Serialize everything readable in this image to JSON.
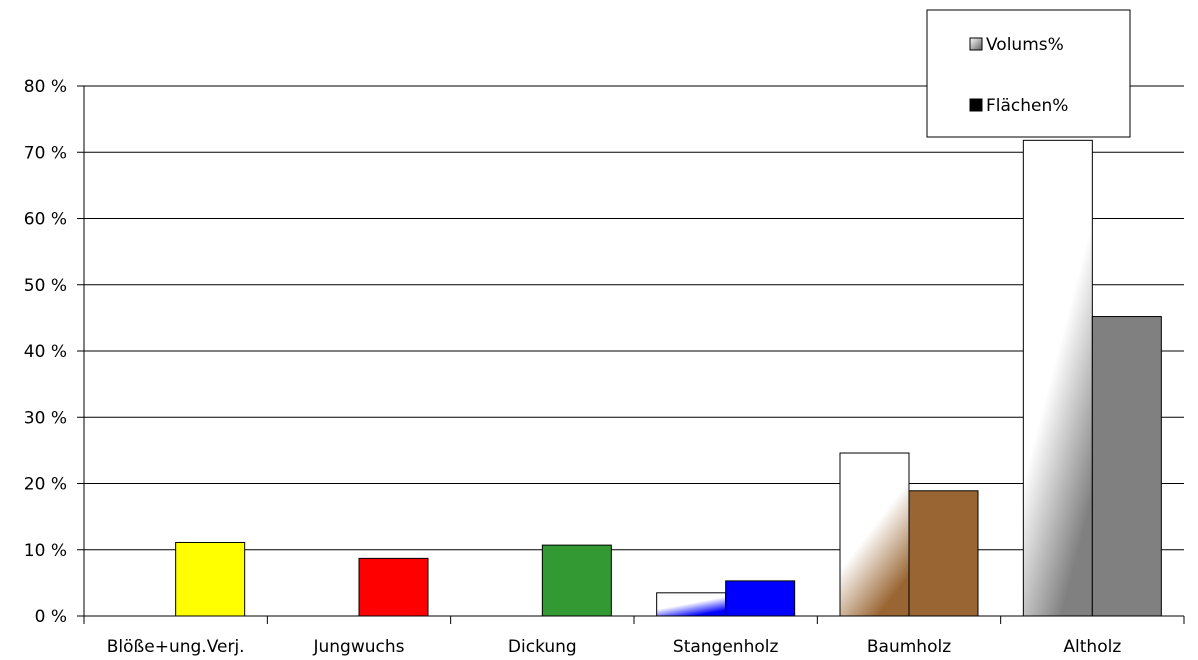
{
  "chart_data": {
    "type": "bar",
    "categories": [
      "Blöße+ung.Verj.",
      "Jungwuchs",
      "Dickung",
      "Stangenholz",
      "Baumholz",
      "Altholz"
    ],
    "series": [
      {
        "name": "Volums%",
        "values": [
          0,
          0,
          0,
          3.5,
          24.6,
          71.8
        ]
      },
      {
        "name": "Flächen%",
        "values": [
          11.1,
          8.7,
          10.7,
          5.3,
          18.9,
          45.2
        ]
      }
    ],
    "ylim": [
      0,
      80
    ],
    "yticks": [
      0,
      10,
      20,
      30,
      40,
      50,
      60,
      70,
      80
    ],
    "ytick_labels": [
      "0 %",
      "10 %",
      "20 %",
      "30 %",
      "40 %",
      "50 %",
      "60 %",
      "70 %",
      "80 %"
    ],
    "grid": true,
    "legend": "top-right",
    "colors": {
      "volume_fill_light": "#ffffff",
      "flaechen": [
        "#ffff00",
        "#ff0000",
        "#339933",
        "#0000ff",
        "#996633",
        "#808080"
      ],
      "volume_tints": [
        "#ffffff",
        "#ffffff",
        "#ffffff",
        "#0000ff",
        "#996633",
        "#808080"
      ]
    }
  }
}
